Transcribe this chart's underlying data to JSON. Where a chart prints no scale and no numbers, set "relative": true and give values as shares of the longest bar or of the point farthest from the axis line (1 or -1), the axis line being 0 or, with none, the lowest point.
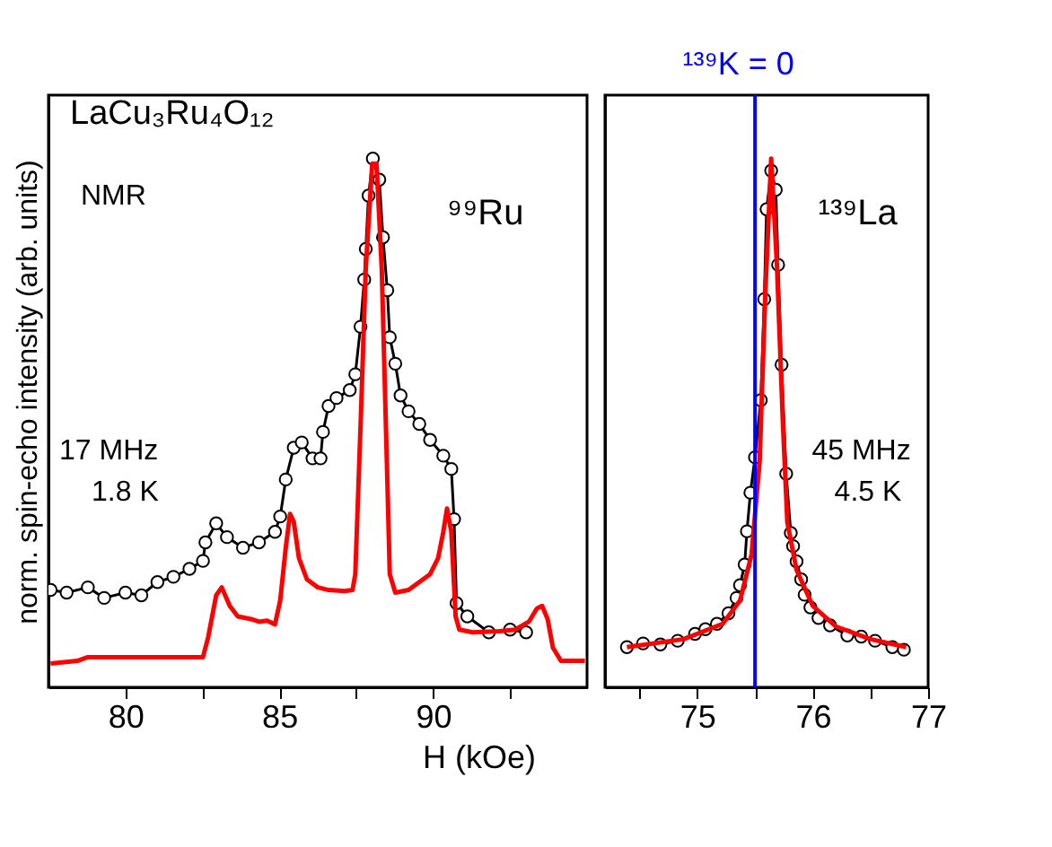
{
  "chart_data": [
    {
      "type": "line",
      "title": "LaCu₃Ru₄O₁₂",
      "xlabel": "H (kOe)",
      "ylabel": "norm. spin-echo intensity (arb. units)",
      "relative": true,
      "tick_labels": "x",
      "grid": false,
      "annotations": [
        "NMR",
        "⁹⁹Ru",
        "17 MHz",
        "1.8 K"
      ],
      "xlim": [
        77.5,
        95
      ],
      "xticks": [
        80,
        {
          "value": 82.5,
          "label": null
        },
        85,
        {
          "value": 87.5,
          "label": null
        },
        90,
        {
          "value": 92.5,
          "label": null
        }
      ],
      "series": [
        {
          "color": "#000000",
          "marker": "circle",
          "x": [
            77.57,
            78.09,
            78.78,
            79.31,
            80.0,
            80.52,
            81.04,
            81.56,
            82.08,
            82.52,
            82.6,
            82.95,
            83.3,
            83.82,
            84.34,
            84.86,
            85.03,
            85.21,
            85.47,
            85.73,
            86.08,
            86.34,
            86.42,
            86.6,
            86.86,
            87.29,
            87.47,
            87.64,
            87.76,
            87.81,
            87.9,
            88.04,
            88.25,
            88.37,
            88.51,
            88.59,
            88.77,
            88.94,
            89.2,
            89.55,
            89.9,
            90.33,
            90.59,
            90.68,
            90.76,
            91.11,
            91.81,
            92.5,
            93.02
          ],
          "values": [
            0.184,
            0.179,
            0.189,
            0.169,
            0.179,
            0.174,
            0.199,
            0.209,
            0.224,
            0.239,
            0.274,
            0.31,
            0.284,
            0.264,
            0.274,
            0.294,
            0.323,
            0.393,
            0.453,
            0.463,
            0.433,
            0.433,
            0.483,
            0.532,
            0.547,
            0.562,
            0.592,
            0.682,
            0.771,
            0.829,
            0.93,
            1.0,
            0.96,
            0.851,
            0.751,
            0.662,
            0.612,
            0.552,
            0.522,
            0.498,
            0.468,
            0.438,
            0.413,
            0.318,
            0.159,
            0.134,
            0.104,
            0.109,
            0.104
          ]
        },
        {
          "color": "#ff0000",
          "marker": "none",
          "x": [
            77.57,
            78.44,
            78.78,
            80.0,
            82.52,
            82.69,
            82.95,
            83.13,
            83.39,
            83.65,
            84.08,
            84.34,
            84.6,
            84.86,
            85.03,
            85.21,
            85.35,
            85.47,
            85.64,
            85.9,
            86.25,
            86.6,
            87.12,
            87.38,
            87.47,
            87.64,
            87.81,
            88.02,
            88.16,
            88.33,
            88.51,
            88.59,
            88.77,
            89.2,
            89.55,
            89.9,
            90.16,
            90.33,
            90.45,
            90.59,
            90.73,
            90.85,
            91.28,
            92.15,
            92.67,
            93.11,
            93.37,
            93.54,
            93.72,
            93.89,
            94.15,
            94.93
          ],
          "values": [
            0.045,
            0.05,
            0.057,
            0.057,
            0.057,
            0.095,
            0.174,
            0.189,
            0.154,
            0.134,
            0.129,
            0.124,
            0.126,
            0.119,
            0.164,
            0.264,
            0.328,
            0.313,
            0.244,
            0.204,
            0.189,
            0.184,
            0.182,
            0.184,
            0.214,
            0.493,
            0.791,
            0.99,
            0.99,
            0.791,
            0.393,
            0.214,
            0.179,
            0.184,
            0.199,
            0.214,
            0.244,
            0.294,
            0.338,
            0.294,
            0.134,
            0.109,
            0.104,
            0.106,
            0.109,
            0.124,
            0.149,
            0.154,
            0.129,
            0.075,
            0.05,
            0.05
          ]
        }
      ]
    },
    {
      "type": "line",
      "relative": true,
      "tick_labels": "x",
      "grid": false,
      "annotations": [
        "¹³⁹La",
        "45 MHz",
        "4.5 K",
        "¹³⁹K = 0"
      ],
      "xlim": [
        74.2,
        77
      ],
      "xticks": [
        {
          "value": 74.5,
          "label": null
        },
        75,
        {
          "value": 75.5,
          "label": null
        },
        76,
        {
          "value": 76.5,
          "label": null
        },
        77
      ],
      "ref_lines": [
        {
          "axis": "x",
          "value": 75.5,
          "color": "#0000ff"
        }
      ],
      "series": [
        {
          "color": "#000000",
          "marker": "circle",
          "x": [
            74.39,
            74.53,
            74.68,
            74.83,
            74.98,
            75.07,
            75.17,
            75.27,
            75.34,
            75.37,
            75.41,
            75.43,
            75.46,
            75.5,
            75.55,
            75.58,
            75.6,
            75.64,
            75.68,
            75.7,
            75.73,
            75.77,
            75.81,
            75.83,
            75.86,
            75.9,
            75.93,
            75.98,
            76.05,
            76.15,
            76.3,
            76.42,
            76.54,
            76.69,
            76.79
          ],
          "values": [
            0.076,
            0.083,
            0.081,
            0.088,
            0.101,
            0.11,
            0.12,
            0.14,
            0.169,
            0.193,
            0.232,
            0.295,
            0.368,
            0.435,
            0.543,
            0.734,
            0.904,
            0.977,
            0.941,
            0.799,
            0.61,
            0.404,
            0.292,
            0.267,
            0.238,
            0.204,
            0.175,
            0.151,
            0.131,
            0.117,
            0.098,
            0.096,
            0.088,
            0.076,
            0.071
          ]
        },
        {
          "color": "#ff0000",
          "marker": "none",
          "x": [
            74.39,
            74.88,
            75.22,
            75.37,
            75.47,
            75.54,
            75.59,
            75.64,
            75.69,
            75.74,
            75.78,
            75.86,
            76.0,
            76.2,
            76.5,
            76.81
          ],
          "values": [
            0.076,
            0.091,
            0.12,
            0.164,
            0.251,
            0.427,
            0.749,
            1.0,
            0.798,
            0.507,
            0.312,
            0.222,
            0.154,
            0.115,
            0.091,
            0.076
          ]
        }
      ]
    }
  ]
}
